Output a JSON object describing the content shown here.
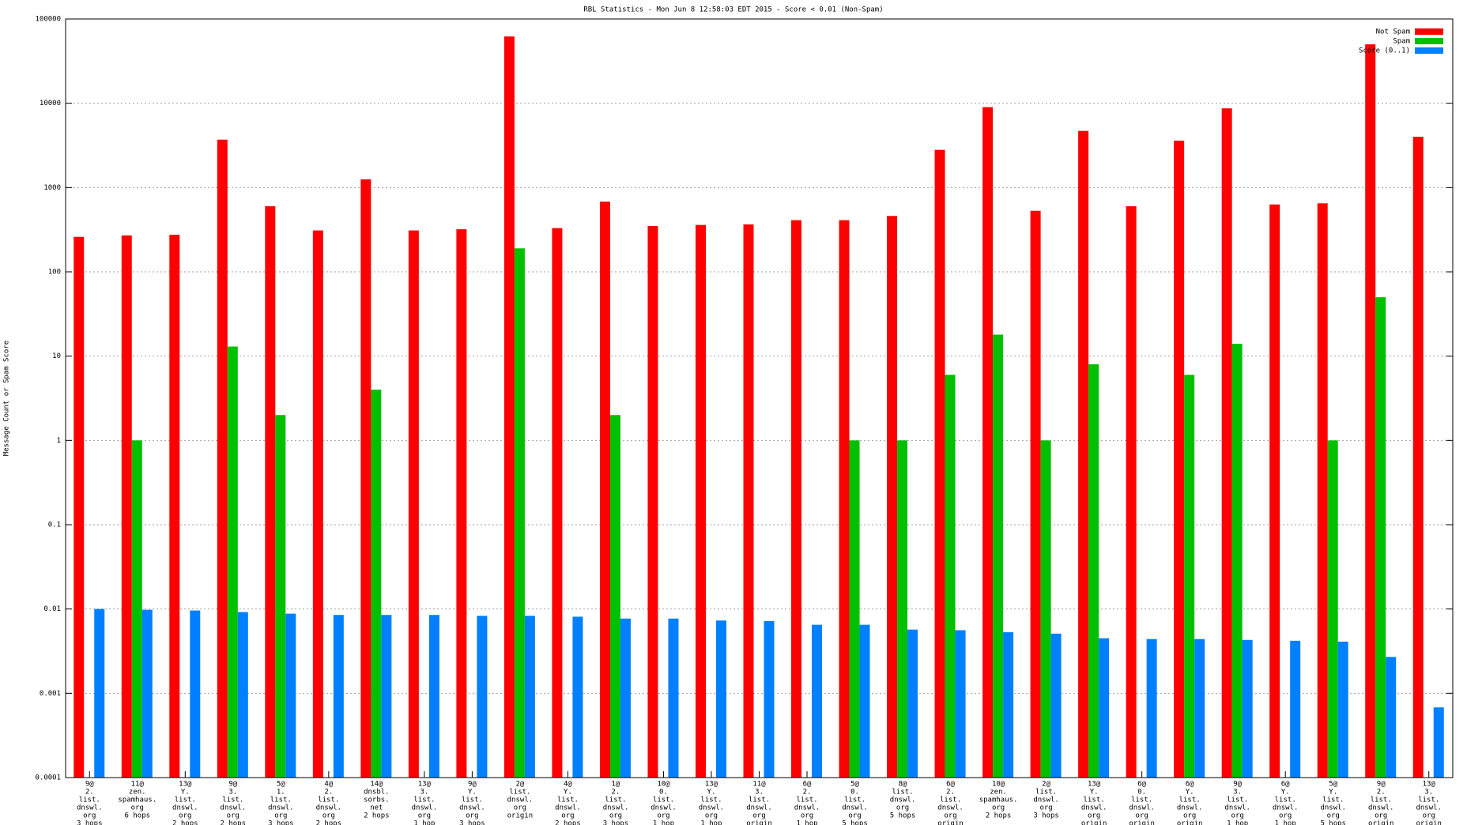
{
  "chart_data": {
    "type": "bar",
    "title": "RBL Statistics - Mon Jun  8 12:58:03 EDT 2015 - Score < 0.01 (Non-Spam)",
    "y_label": "Message Count or Spam Score",
    "log_scale": true,
    "grid": true,
    "legend_position": "top-right",
    "ylim": [
      0.0001,
      100000
    ],
    "yticks": [
      0.0001,
      0.001,
      0.01,
      0.1,
      1,
      10,
      100,
      1000,
      10000,
      100000
    ],
    "categories": [
      [
        "9@",
        "2.",
        "list.",
        "dnswl.",
        "org",
        "3 hops"
      ],
      [
        "11@",
        "zen.",
        "spamhaus.",
        "org",
        "6 hops"
      ],
      [
        "13@",
        "Y.",
        "list.",
        "dnswl.",
        "org",
        "2 hops"
      ],
      [
        "9@",
        "3.",
        "list.",
        "dnswl.",
        "org",
        "2 hops"
      ],
      [
        "5@",
        "1.",
        "list.",
        "dnswl.",
        "org",
        "3 hops"
      ],
      [
        "4@",
        "2.",
        "list.",
        "dnswl.",
        "org",
        "2 hops"
      ],
      [
        "14@",
        "dnsbl.",
        "sorbs.",
        "net",
        "2 hops"
      ],
      [
        "13@",
        "3.",
        "list.",
        "dnswl.",
        "org",
        "1 hop"
      ],
      [
        "9@",
        "Y.",
        "list.",
        "dnswl.",
        "org",
        "3 hops"
      ],
      [
        "2@",
        "list.",
        "dnswl.",
        "org",
        "origin"
      ],
      [
        "4@",
        "Y.",
        "list.",
        "dnswl.",
        "org",
        "2 hops"
      ],
      [
        "1@",
        "2.",
        "list.",
        "dnswl.",
        "org",
        "3 hops"
      ],
      [
        "10@",
        "0.",
        "list.",
        "dnswl.",
        "org",
        "1 hop"
      ],
      [
        "13@",
        "Y.",
        "list.",
        "dnswl.",
        "org",
        "1 hop"
      ],
      [
        "11@",
        "3.",
        "list.",
        "dnswl.",
        "org",
        "origin"
      ],
      [
        "6@",
        "2.",
        "list.",
        "dnswl.",
        "org",
        "1 hop"
      ],
      [
        "5@",
        "0.",
        "list.",
        "dnswl.",
        "org",
        "5 hops"
      ],
      [
        "8@",
        "list.",
        "dnswl.",
        "org",
        "5 hops"
      ],
      [
        "6@",
        "2.",
        "list.",
        "dnswl.",
        "org",
        "origin"
      ],
      [
        "10@",
        "zen.",
        "spamhaus.",
        "org",
        "2 hops"
      ],
      [
        "2@",
        "list.",
        "dnswl.",
        "org",
        "3 hops"
      ],
      [
        "13@",
        "Y.",
        "list.",
        "dnswl.",
        "org",
        "origin"
      ],
      [
        "6@",
        "0.",
        "list.",
        "dnswl.",
        "org",
        "origin"
      ],
      [
        "6@",
        "Y.",
        "list.",
        "dnswl.",
        "org",
        "origin"
      ],
      [
        "9@",
        "3.",
        "list.",
        "dnswl.",
        "org",
        "1 hop"
      ],
      [
        "6@",
        "Y.",
        "list.",
        "dnswl.",
        "org",
        "1 hop"
      ],
      [
        "5@",
        "Y.",
        "list.",
        "dnswl.",
        "org",
        "5 hops"
      ],
      [
        "9@",
        "2.",
        "list.",
        "dnswl.",
        "org",
        "origin"
      ],
      [
        "13@",
        "3.",
        "list.",
        "dnswl.",
        "org",
        "origin"
      ]
    ],
    "series": [
      {
        "name": "Not Spam",
        "color": "#ff0000",
        "values": [
          260,
          270,
          275,
          3700,
          600,
          310,
          1250,
          310,
          320,
          62000,
          330,
          680,
          350,
          360,
          365,
          410,
          410,
          460,
          2800,
          9000,
          530,
          4700,
          600,
          3600,
          8700,
          630,
          650,
          50000,
          4000
        ]
      },
      {
        "name": "Spam",
        "color": "#00c000",
        "values": [
          null,
          1,
          null,
          13,
          2,
          null,
          4,
          null,
          null,
          190,
          null,
          2,
          null,
          null,
          null,
          null,
          1,
          1,
          6,
          18,
          1,
          8,
          null,
          6,
          14,
          null,
          1,
          50,
          null
        ]
      },
      {
        "name": "Score (0..1)",
        "color": "#0080ff",
        "values": [
          0.01,
          0.0098,
          0.0096,
          0.0092,
          0.0088,
          0.0085,
          0.0085,
          0.0085,
          0.0083,
          0.0083,
          0.0081,
          0.0077,
          0.0077,
          0.0073,
          0.0072,
          0.0065,
          0.0065,
          0.0057,
          0.0056,
          0.0053,
          0.0051,
          0.0045,
          0.0044,
          0.0044,
          0.0043,
          0.0042,
          0.0041,
          0.0027,
          0.00068
        ]
      }
    ]
  }
}
